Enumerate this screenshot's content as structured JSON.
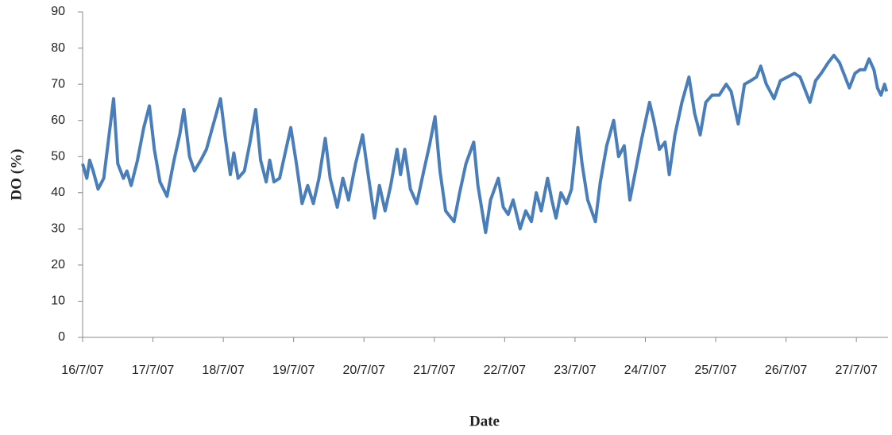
{
  "chart_data": {
    "type": "line",
    "x_label": "Date",
    "y_label": "DO (%)",
    "x": [
      0,
      0.06,
      0.1,
      0.15,
      0.22,
      0.3,
      0.37,
      0.44,
      0.5,
      0.58,
      0.63,
      0.69,
      0.78,
      0.87,
      0.95,
      1.02,
      1.1,
      1.2,
      1.3,
      1.38,
      1.44,
      1.52,
      1.59,
      1.68,
      1.76,
      1.86,
      1.96,
      2.03,
      2.1,
      2.15,
      2.21,
      2.3,
      2.38,
      2.46,
      2.53,
      2.61,
      2.66,
      2.72,
      2.8,
      2.88,
      2.96,
      3.04,
      3.12,
      3.2,
      3.28,
      3.36,
      3.45,
      3.52,
      3.62,
      3.7,
      3.78,
      3.88,
      3.98,
      4.06,
      4.15,
      4.22,
      4.3,
      4.38,
      4.47,
      4.52,
      4.58,
      4.66,
      4.75,
      4.85,
      4.93,
      5.01,
      5.08,
      5.16,
      5.28,
      5.36,
      5.45,
      5.56,
      5.62,
      5.73,
      5.8,
      5.91,
      5.98,
      6.05,
      6.12,
      6.22,
      6.3,
      6.38,
      6.45,
      6.52,
      6.61,
      6.67,
      6.73,
      6.8,
      6.88,
      6.95,
      7.04,
      7.1,
      7.18,
      7.29,
      7.36,
      7.45,
      7.55,
      7.62,
      7.7,
      7.78,
      7.86,
      7.95,
      8.06,
      8.12,
      8.2,
      8.28,
      8.34,
      8.42,
      8.52,
      8.62,
      8.7,
      8.78,
      8.86,
      8.95,
      9.05,
      9.15,
      9.22,
      9.32,
      9.41,
      9.5,
      9.58,
      9.64,
      9.72,
      9.83,
      9.92,
      10.02,
      10.12,
      10.2,
      10.34,
      10.42,
      10.5,
      10.6,
      10.68,
      10.76,
      10.84,
      10.9,
      10.98,
      11.05,
      11.12,
      11.18,
      11.25,
      11.3,
      11.35,
      11.4,
      11.43
    ],
    "series": [
      {
        "color": "#4a7ebb",
        "values": [
          48,
          44,
          49,
          46,
          41,
          44,
          55,
          66,
          48,
          44,
          46,
          42,
          49,
          58,
          64,
          52,
          43,
          39,
          49,
          56,
          63,
          50,
          46,
          49,
          52,
          59,
          66,
          55,
          45,
          51,
          44,
          46,
          54,
          63,
          49,
          43,
          49,
          43,
          44,
          51,
          58,
          48,
          37,
          42,
          37,
          44,
          55,
          44,
          36,
          44,
          38,
          48,
          56,
          45,
          33,
          42,
          35,
          42,
          52,
          45,
          52,
          41,
          37,
          46,
          53,
          61,
          46,
          35,
          32,
          40,
          48,
          54,
          42,
          29,
          38,
          44,
          36,
          34,
          38,
          30,
          35,
          32,
          40,
          35,
          44,
          38,
          33,
          40,
          37,
          41,
          58,
          48,
          38,
          32,
          43,
          53,
          60,
          50,
          53,
          38,
          46,
          55,
          65,
          60,
          52,
          54,
          45,
          56,
          65,
          72,
          62,
          56,
          65,
          67,
          67,
          70,
          68,
          59,
          70,
          71,
          72,
          75,
          70,
          66,
          71,
          72,
          73,
          72,
          65,
          71,
          73,
          76,
          78,
          76,
          72,
          69,
          73,
          74,
          74,
          77,
          74,
          69,
          67,
          70,
          68
        ]
      }
    ],
    "xlim": [
      0,
      11.45
    ],
    "xticks": [
      {
        "value": 0,
        "label": "16/7/07"
      },
      {
        "value": 1,
        "label": "17/7/07"
      },
      {
        "value": 2,
        "label": "18/7/07"
      },
      {
        "value": 3,
        "label": "19/7/07"
      },
      {
        "value": 4,
        "label": "20/7/07"
      },
      {
        "value": 5,
        "label": "21/7/07"
      },
      {
        "value": 6,
        "label": "22/7/07"
      },
      {
        "value": 7,
        "label": "23/7/07"
      },
      {
        "value": 8,
        "label": "24/7/07"
      },
      {
        "value": 9,
        "label": "25/7/07"
      },
      {
        "value": 10,
        "label": "26/7/07"
      },
      {
        "value": 11,
        "label": "27/7/07"
      }
    ],
    "ylim": [
      0,
      90
    ],
    "yticks": [
      0,
      10,
      20,
      30,
      40,
      50,
      60,
      70,
      80,
      90
    ],
    "grid": false
  }
}
